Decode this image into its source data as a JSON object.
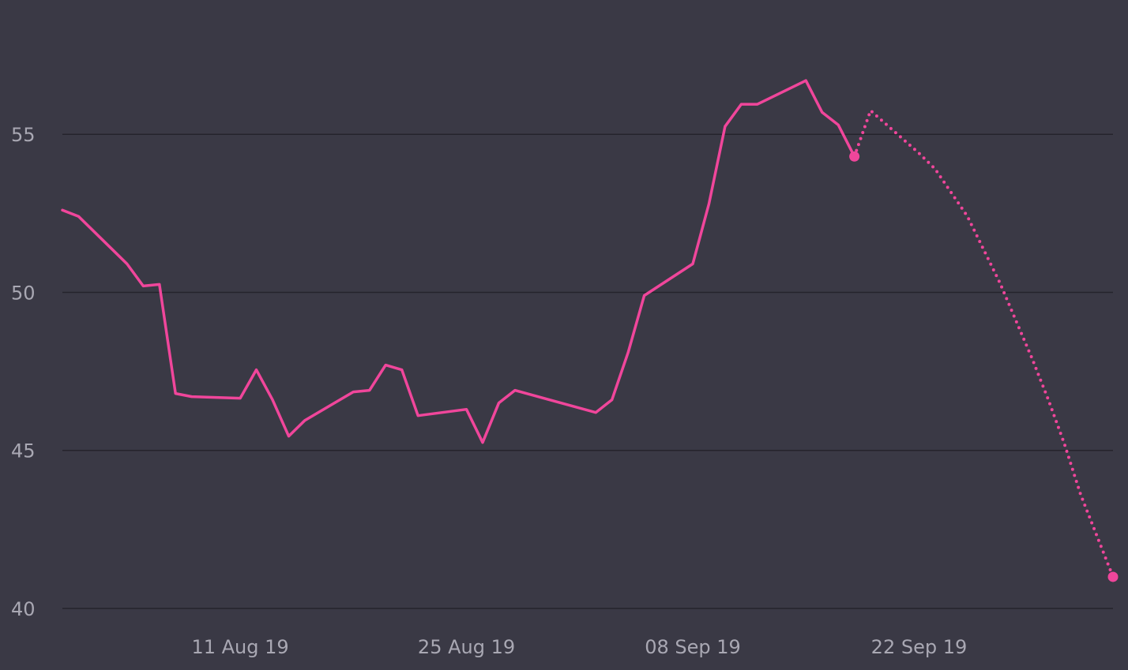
{
  "chart_data": {
    "type": "line",
    "title": "",
    "xlabel": "",
    "ylabel": "",
    "xlim": [
      "2019-07-31",
      "2019-10-04"
    ],
    "ylim": [
      40,
      58.5
    ],
    "grid": true,
    "y_ticks": [
      {
        "value": 40,
        "label": "40"
      },
      {
        "value": 45,
        "label": "45"
      },
      {
        "value": 50,
        "label": "50"
      },
      {
        "value": 55,
        "label": "55"
      }
    ],
    "x_ticks": [
      {
        "value": "2019-08-11",
        "label": "11 Aug 19"
      },
      {
        "value": "2019-08-25",
        "label": "25 Aug 19"
      },
      {
        "value": "2019-09-08",
        "label": "08 Sep 19"
      },
      {
        "value": "2019-09-22",
        "label": "22 Sep 19"
      }
    ],
    "colors": {
      "line": "#f0469b",
      "background": "#3a3945",
      "grid": "#25242c",
      "tick_text": "#a9a8b3"
    },
    "series": [
      {
        "style": "solid",
        "end_marker": true,
        "points": [
          {
            "x": "2019-07-31",
            "y": 52.6
          },
          {
            "x": "2019-08-01",
            "y": 52.4
          },
          {
            "x": "2019-08-04",
            "y": 50.9
          },
          {
            "x": "2019-08-05",
            "y": 50.2
          },
          {
            "x": "2019-08-06",
            "y": 50.25
          },
          {
            "x": "2019-08-07",
            "y": 46.8
          },
          {
            "x": "2019-08-08",
            "y": 46.7
          },
          {
            "x": "2019-08-11",
            "y": 46.65
          },
          {
            "x": "2019-08-12",
            "y": 47.55
          },
          {
            "x": "2019-08-13",
            "y": 46.6
          },
          {
            "x": "2019-08-14",
            "y": 45.45
          },
          {
            "x": "2019-08-15",
            "y": 45.95
          },
          {
            "x": "2019-08-18",
            "y": 46.85
          },
          {
            "x": "2019-08-19",
            "y": 46.9
          },
          {
            "x": "2019-08-20",
            "y": 47.7
          },
          {
            "x": "2019-08-21",
            "y": 47.55
          },
          {
            "x": "2019-08-22",
            "y": 46.1
          },
          {
            "x": "2019-08-25",
            "y": 46.3
          },
          {
            "x": "2019-08-26",
            "y": 45.25
          },
          {
            "x": "2019-08-27",
            "y": 46.5
          },
          {
            "x": "2019-08-28",
            "y": 46.9
          },
          {
            "x": "2019-09-02",
            "y": 46.2
          },
          {
            "x": "2019-09-03",
            "y": 46.6
          },
          {
            "x": "2019-09-04",
            "y": 48.1
          },
          {
            "x": "2019-09-05",
            "y": 49.9
          },
          {
            "x": "2019-09-08",
            "y": 50.9
          },
          {
            "x": "2019-09-09",
            "y": 52.8
          },
          {
            "x": "2019-09-10",
            "y": 55.25
          },
          {
            "x": "2019-09-11",
            "y": 55.95
          },
          {
            "x": "2019-09-12",
            "y": 55.95
          },
          {
            "x": "2019-09-15",
            "y": 56.7
          },
          {
            "x": "2019-09-16",
            "y": 55.7
          },
          {
            "x": "2019-09-17",
            "y": 55.3
          },
          {
            "x": "2019-09-18",
            "y": 54.3
          }
        ]
      },
      {
        "style": "dotted",
        "end_marker": true,
        "points": [
          {
            "x": "2019-09-18",
            "y": 54.3
          },
          {
            "x": "2019-09-19",
            "y": 55.75
          },
          {
            "x": "2019-09-22",
            "y": 54.4
          },
          {
            "x": "2019-09-23",
            "y": 53.9
          },
          {
            "x": "2019-09-25",
            "y": 52.4
          },
          {
            "x": "2019-09-27",
            "y": 50.3
          },
          {
            "x": "2019-09-29",
            "y": 47.9
          },
          {
            "x": "2019-09-30",
            "y": 46.6
          },
          {
            "x": "2019-10-01",
            "y": 45.2
          },
          {
            "x": "2019-10-02",
            "y": 43.6
          },
          {
            "x": "2019-10-04",
            "y": 41.0
          }
        ]
      }
    ]
  }
}
